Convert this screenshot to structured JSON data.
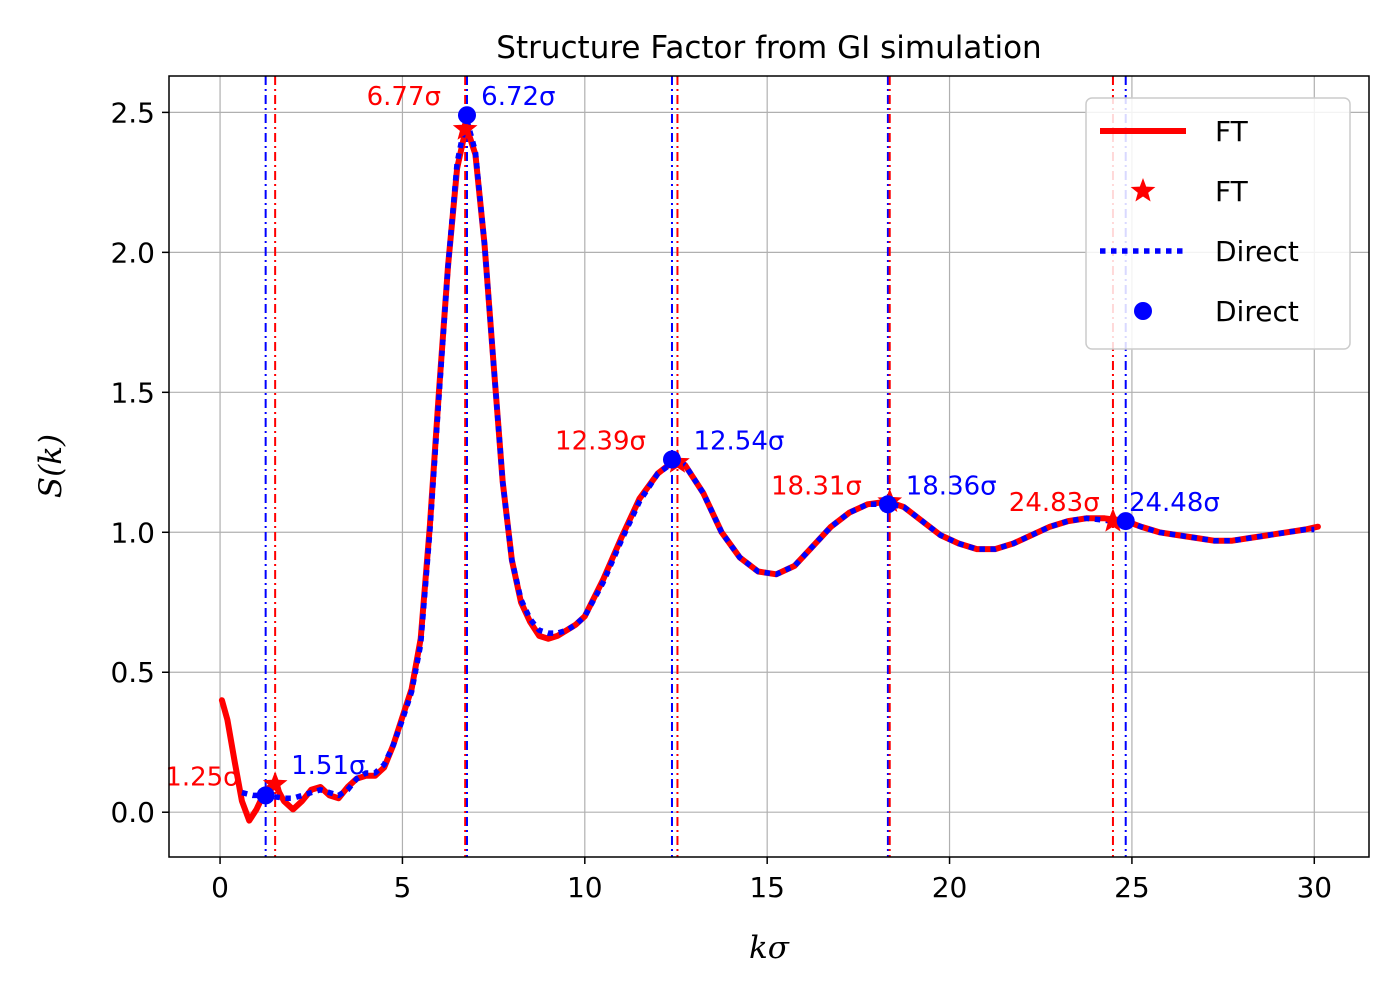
{
  "chart_data": {
    "type": "line",
    "title": "Structure Factor from GI simulation",
    "xlabel": "kσ",
    "ylabel": "S(k)",
    "xlim": [
      -1.4,
      31.5
    ],
    "ylim": [
      -0.16,
      2.63
    ],
    "xticks": [
      0,
      5,
      10,
      15,
      20,
      25,
      30
    ],
    "xtick_labels": [
      "0",
      "5",
      "10",
      "15",
      "20",
      "25",
      "30"
    ],
    "yticks": [
      0.0,
      0.5,
      1.0,
      1.5,
      2.0,
      2.5
    ],
    "ytick_labels": [
      "0.0",
      "0.5",
      "1.0",
      "1.5",
      "2.0",
      "2.5"
    ],
    "grid": true,
    "legend_position": "upper right",
    "series": [
      {
        "name": "FT",
        "style": "solid",
        "color": "#ff0000",
        "x": [
          0.05,
          0.2,
          0.4,
          0.6,
          0.8,
          1.0,
          1.25,
          1.5,
          1.75,
          2.0,
          2.25,
          2.5,
          2.75,
          3.0,
          3.25,
          3.5,
          3.75,
          4.0,
          4.25,
          4.5,
          4.75,
          5.0,
          5.25,
          5.5,
          5.75,
          6.0,
          6.25,
          6.5,
          6.75,
          7.0,
          7.25,
          7.5,
          7.75,
          8.0,
          8.25,
          8.5,
          8.75,
          9.0,
          9.25,
          9.5,
          9.75,
          10.0,
          10.5,
          11.0,
          11.5,
          12.0,
          12.39,
          12.75,
          13.25,
          13.75,
          14.25,
          14.75,
          15.25,
          15.75,
          16.25,
          16.75,
          17.25,
          17.75,
          18.31,
          18.75,
          19.25,
          19.75,
          20.25,
          20.75,
          21.25,
          21.75,
          22.25,
          22.75,
          23.25,
          23.75,
          24.25,
          24.83,
          25.25,
          25.75,
          26.25,
          26.75,
          27.25,
          27.75,
          28.25,
          28.75,
          29.25,
          29.75,
          30.1
        ],
        "y": [
          0.4,
          0.33,
          0.18,
          0.04,
          -0.03,
          0.01,
          0.08,
          0.1,
          0.04,
          0.01,
          0.04,
          0.08,
          0.09,
          0.06,
          0.05,
          0.09,
          0.12,
          0.13,
          0.13,
          0.16,
          0.24,
          0.34,
          0.44,
          0.62,
          1.02,
          1.5,
          1.95,
          2.3,
          2.45,
          2.35,
          2.03,
          1.6,
          1.18,
          0.9,
          0.75,
          0.68,
          0.63,
          0.62,
          0.63,
          0.65,
          0.67,
          0.7,
          0.83,
          0.98,
          1.12,
          1.21,
          1.25,
          1.24,
          1.14,
          1.0,
          0.91,
          0.86,
          0.85,
          0.88,
          0.95,
          1.02,
          1.07,
          1.1,
          1.11,
          1.09,
          1.04,
          0.99,
          0.96,
          0.94,
          0.94,
          0.96,
          0.99,
          1.02,
          1.04,
          1.05,
          1.05,
          1.04,
          1.02,
          1.0,
          0.99,
          0.98,
          0.97,
          0.97,
          0.98,
          0.99,
          1.0,
          1.01,
          1.02
        ]
      },
      {
        "name": "FT",
        "style": "star-markers",
        "color": "#ff0000",
        "x": [
          1.51,
          6.72,
          12.54,
          18.36,
          24.48
        ],
        "y": [
          0.1,
          2.44,
          1.25,
          1.11,
          1.04
        ]
      },
      {
        "name": "Direct",
        "style": "dotted",
        "color": "#0000ff",
        "x": [
          0.6,
          0.9,
          1.25,
          1.5,
          1.75,
          2.0,
          2.25,
          2.5,
          2.75,
          3.0,
          3.25,
          3.5,
          3.75,
          4.0,
          4.25,
          4.5,
          4.75,
          5.0,
          5.25,
          5.5,
          5.75,
          6.0,
          6.25,
          6.5,
          6.75,
          7.0,
          7.25,
          7.5,
          7.75,
          8.0,
          8.25,
          8.5,
          8.75,
          9.0,
          9.25,
          9.5,
          9.75,
          10.0,
          10.5,
          11.0,
          11.5,
          12.0,
          12.54,
          12.75,
          13.25,
          13.75,
          14.25,
          14.75,
          15.25,
          15.75,
          16.25,
          16.75,
          17.25,
          17.75,
          18.36,
          18.75,
          19.25,
          19.75,
          20.25,
          20.75,
          21.25,
          21.75,
          22.25,
          22.75,
          23.25,
          23.75,
          24.48,
          24.83,
          25.25,
          25.75,
          26.25,
          26.75,
          27.25,
          27.75,
          28.25,
          28.75,
          29.25,
          29.75,
          30.0
        ],
        "y": [
          0.07,
          0.06,
          0.06,
          0.055,
          0.05,
          0.05,
          0.06,
          0.07,
          0.08,
          0.07,
          0.06,
          0.08,
          0.12,
          0.14,
          0.14,
          0.17,
          0.24,
          0.33,
          0.43,
          0.6,
          1.0,
          1.48,
          1.95,
          2.32,
          2.48,
          2.36,
          2.03,
          1.6,
          1.18,
          0.9,
          0.76,
          0.69,
          0.65,
          0.64,
          0.64,
          0.65,
          0.67,
          0.7,
          0.82,
          0.97,
          1.11,
          1.21,
          1.26,
          1.24,
          1.14,
          1.0,
          0.91,
          0.86,
          0.85,
          0.88,
          0.95,
          1.02,
          1.07,
          1.1,
          1.1,
          1.09,
          1.04,
          0.99,
          0.96,
          0.94,
          0.94,
          0.96,
          0.99,
          1.02,
          1.04,
          1.05,
          1.04,
          1.04,
          1.02,
          1.0,
          0.99,
          0.98,
          0.97,
          0.97,
          0.98,
          0.99,
          1.0,
          1.01,
          1.01
        ]
      },
      {
        "name": "Direct",
        "style": "circle-markers",
        "color": "#0000ff",
        "x": [
          1.25,
          6.77,
          12.39,
          18.31,
          24.83
        ],
        "y": [
          0.06,
          2.49,
          1.26,
          1.1,
          1.04
        ]
      }
    ],
    "vlines": [
      {
        "x": 1.25,
        "color": "#0000ff"
      },
      {
        "x": 1.51,
        "color": "#ff0000"
      },
      {
        "x": 6.72,
        "color": "#ff0000"
      },
      {
        "x": 6.77,
        "color": "#0000ff"
      },
      {
        "x": 12.39,
        "color": "#0000ff"
      },
      {
        "x": 12.54,
        "color": "#ff0000"
      },
      {
        "x": 18.31,
        "color": "#0000ff"
      },
      {
        "x": 18.36,
        "color": "#ff0000"
      },
      {
        "x": 24.48,
        "color": "#ff0000"
      },
      {
        "x": 24.83,
        "color": "#0000ff"
      }
    ],
    "annotations": [
      {
        "text": "1.25σ",
        "color": "#ff0000",
        "x": 1.25,
        "y": 0.06,
        "anchor": "end"
      },
      {
        "text": "1.51σ",
        "color": "#0000ff",
        "x": 1.51,
        "y": 0.1,
        "anchor": "start"
      },
      {
        "text": "6.77σ",
        "color": "#ff0000",
        "x": 6.77,
        "y": 2.49,
        "anchor": "end"
      },
      {
        "text": "6.72σ",
        "color": "#0000ff",
        "x": 6.72,
        "y": 2.49,
        "anchor": "start"
      },
      {
        "text": "12.39σ",
        "color": "#ff0000",
        "x": 12.39,
        "y": 1.26,
        "anchor": "end"
      },
      {
        "text": "12.54σ",
        "color": "#0000ff",
        "x": 12.54,
        "y": 1.26,
        "anchor": "start"
      },
      {
        "text": "18.31σ",
        "color": "#ff0000",
        "x": 18.31,
        "y": 1.1,
        "anchor": "end"
      },
      {
        "text": "18.36σ",
        "color": "#0000ff",
        "x": 18.36,
        "y": 1.1,
        "anchor": "start"
      },
      {
        "text": "24.83σ",
        "color": "#ff0000",
        "x": 24.83,
        "y": 1.04,
        "anchor": "end"
      },
      {
        "text": "24.48σ",
        "color": "#0000ff",
        "x": 24.48,
        "y": 1.04,
        "anchor": "start"
      }
    ],
    "legend": [
      {
        "label": "FT",
        "marker": "line",
        "color": "#ff0000"
      },
      {
        "label": "FT",
        "marker": "star",
        "color": "#ff0000"
      },
      {
        "label": "Direct",
        "marker": "dotted",
        "color": "#0000ff"
      },
      {
        "label": "Direct",
        "marker": "circle",
        "color": "#0000ff"
      }
    ]
  }
}
